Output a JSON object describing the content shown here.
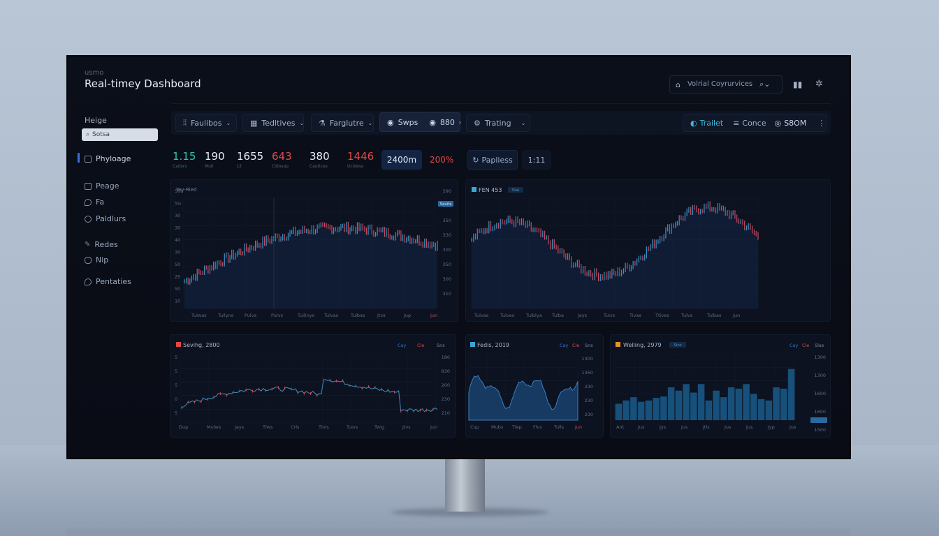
{
  "header": {
    "app": "usmo",
    "title": "Real-timey Dashboard",
    "search_text": "Volrial Coyrurvices"
  },
  "sidebar": {
    "heading": "Heige",
    "search_placeholder": "Sotsa",
    "items": [
      {
        "label": "Phyloage",
        "icon": "home-icon"
      },
      {
        "label": "Peage",
        "icon": "page-icon"
      },
      {
        "label": "Fa",
        "icon": "shield-icon"
      },
      {
        "label": "Paldlurs",
        "icon": "user-icon"
      },
      {
        "label": "Redes",
        "icon": "pen-icon"
      },
      {
        "label": "Nip",
        "icon": "bell-icon"
      },
      {
        "label": "Pentaties",
        "icon": "chat-icon"
      }
    ]
  },
  "toolbar": {
    "left": [
      {
        "label": "Faulibos",
        "icon": "columns-icon"
      },
      {
        "label": "Tedltives",
        "icon": "grid-icon"
      },
      {
        "label": "Farglutre",
        "icon": "flask-icon"
      }
    ],
    "swap": {
      "label": "Swps",
      "value": "880"
    },
    "trading": "Trating",
    "right": {
      "trailet": "Trailet",
      "conce": "Conce",
      "amount": "S8OM"
    }
  },
  "stats": [
    {
      "value": "1.15",
      "label": "Cadsrs",
      "color": "#26c6b0"
    },
    {
      "value": "190",
      "label": "Muli",
      "color": "#e6ecf5"
    },
    {
      "value": "1655",
      "label": "Lil",
      "color": "#e6ecf5"
    },
    {
      "value": "643",
      "label": "Cidosop",
      "color": "#e04848"
    },
    {
      "value": "380",
      "label": "Cautices",
      "color": "#e6ecf5"
    },
    {
      "value": "1446",
      "label": "Ucidess",
      "color": "#e04848"
    }
  ],
  "highlights": {
    "box1": "2400m",
    "box2": "200%",
    "applies": "Papliess",
    "ratio": "1:11"
  },
  "chart1": {
    "title": "Tey-Ried",
    "y_left": [
      "500",
      "5G",
      "30",
      "30",
      "40",
      "30",
      "50",
      "20",
      "50",
      "10"
    ],
    "y_right": [
      "590",
      "300",
      "350",
      "330",
      "300",
      "350",
      "300",
      "310"
    ],
    "x": [
      "Tulwas",
      "Tuilyns",
      "Pulvs",
      "Pulvs",
      "Tuilinys",
      "Tulvas",
      "Tulbas",
      "Jtvs",
      "Jup",
      "Jun"
    ],
    "badge": "Sevits"
  },
  "chart2": {
    "title": "FEN 453",
    "badge": "Stai",
    "x": [
      "Tulvas",
      "Tulves",
      "Tuiblya",
      "Tulba",
      "Jays",
      "Tuivs",
      "Tivas",
      "Ttives",
      "Tulvs",
      "Tulbas",
      "Jun"
    ]
  },
  "chart3": {
    "title": "Sevihg, 2800",
    "tabs": [
      "Cay",
      "Cle",
      "Sns"
    ],
    "y_left": [
      "5",
      "5",
      "5",
      "0",
      "5"
    ],
    "y_right": [
      "180",
      "830",
      "200",
      "230",
      "210"
    ],
    "x": [
      "Dup",
      "Mulws",
      "Jays",
      "Tlws",
      "Crls",
      "Tlvis",
      "Tuivs",
      "Twig",
      "Jtvs",
      "Jun"
    ]
  },
  "chart4": {
    "title": "Fedis, 2019",
    "tabs": [
      "Cay",
      "Cle",
      "Sns"
    ],
    "y_right": [
      "1300",
      "1360",
      "230",
      "230",
      "230"
    ],
    "x": [
      "Cup",
      "Mubs",
      "Tlep",
      "Flvs",
      "Tulls",
      "Jun"
    ]
  },
  "chart5": {
    "title": "Welling, 2979",
    "badge": "Sins",
    "tabs": [
      "Cay",
      "Cle",
      "Slas"
    ],
    "y_right": [
      "1300",
      "1300",
      "1600",
      "1600",
      "1500"
    ],
    "x": [
      "Ant",
      "Jus",
      "Jys",
      "Jus",
      "Jtls",
      "Jus",
      "Jus",
      "Jyp",
      "Jus"
    ]
  }
}
